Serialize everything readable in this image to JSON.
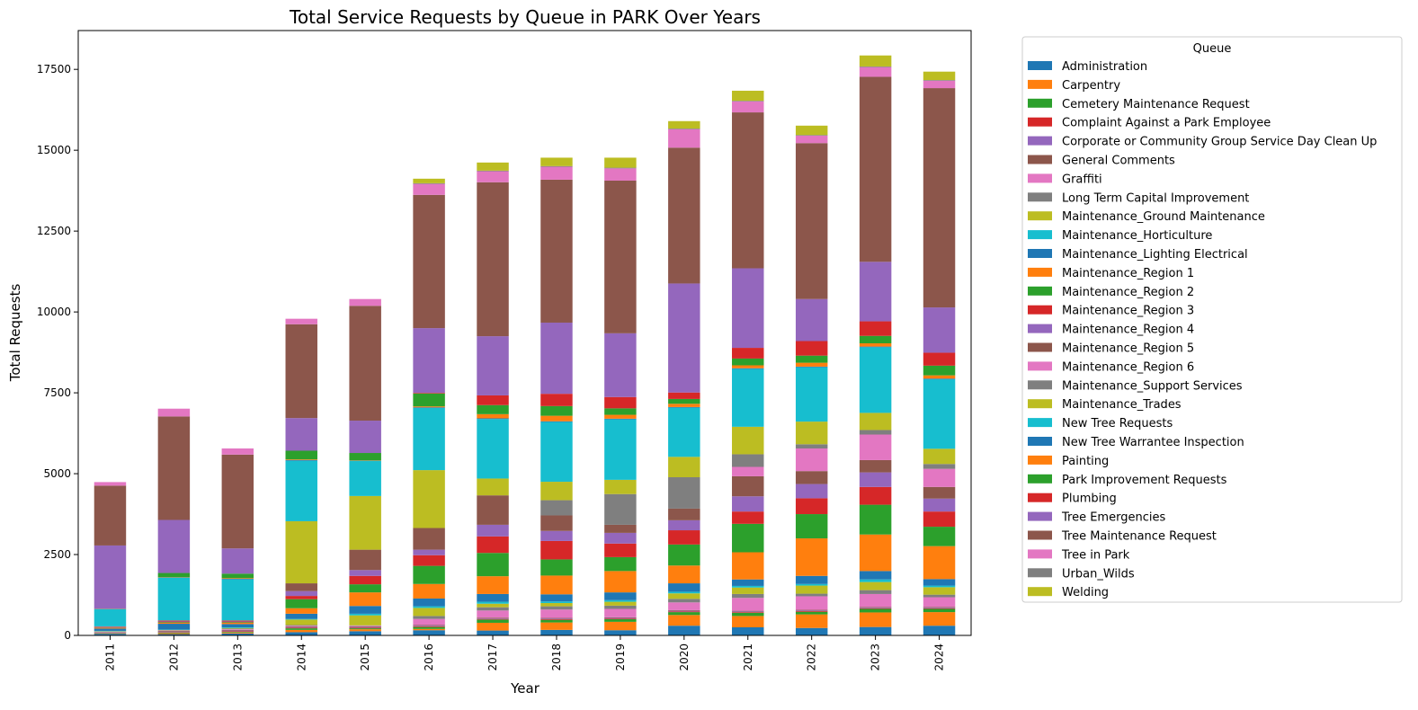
{
  "chart_data": {
    "type": "bar",
    "stacked": true,
    "title": "Total Service Requests by Queue in PARK Over Years",
    "xlabel": "Year",
    "ylabel": "Total Requests",
    "ylim": [
      0,
      18700
    ],
    "yticks": [
      "0",
      "2500",
      "5000",
      "7500",
      "10000",
      "12500",
      "15000",
      "17500"
    ],
    "ytick_values": [
      0,
      2500,
      5000,
      7500,
      10000,
      12500,
      15000,
      17500
    ],
    "grid": false,
    "legend_title": "Queue",
    "legend_position": "outside-right",
    "categories": [
      "2011",
      "2012",
      "2013",
      "2014",
      "2015",
      "2016",
      "2017",
      "2018",
      "2019",
      "2020",
      "2021",
      "2022",
      "2023",
      "2024"
    ],
    "series": [
      {
        "name": "Administration",
        "color": "#1f77b4",
        "values": [
          50,
          40,
          60,
          100,
          130,
          160,
          150,
          170,
          160,
          300,
          250,
          230,
          260,
          300
        ]
      },
      {
        "name": "Carpentry",
        "color": "#ff7f0e",
        "values": [
          10,
          30,
          30,
          70,
          60,
          40,
          240,
          230,
          260,
          330,
          350,
          420,
          450,
          420
        ]
      },
      {
        "name": "Cemetery Maintenance Request",
        "color": "#2ca02c",
        "values": [
          10,
          20,
          20,
          50,
          30,
          60,
          100,
          80,
          80,
          90,
          100,
          80,
          110,
          100
        ]
      },
      {
        "name": "Complaint Against a Park Employee",
        "color": "#d62728",
        "values": [
          10,
          10,
          20,
          20,
          20,
          20,
          20,
          20,
          20,
          20,
          20,
          20,
          20,
          20
        ]
      },
      {
        "name": "Corporate or Community Group Service Day Clean Up",
        "color": "#9467bd",
        "values": [
          10,
          20,
          20,
          20,
          20,
          20,
          20,
          20,
          20,
          20,
          20,
          20,
          20,
          20
        ]
      },
      {
        "name": "General Comments",
        "color": "#8c564b",
        "values": [
          10,
          20,
          20,
          20,
          20,
          20,
          20,
          20,
          20,
          20,
          20,
          20,
          20,
          20
        ]
      },
      {
        "name": "Graffiti",
        "color": "#e377c2",
        "values": [
          10,
          10,
          20,
          20,
          20,
          190,
          220,
          260,
          260,
          240,
          400,
          420,
          400,
          300
        ]
      },
      {
        "name": "Long Term Capital Improvement",
        "color": "#7f7f7f",
        "values": [
          10,
          10,
          20,
          20,
          10,
          90,
          100,
          100,
          100,
          110,
          120,
          80,
          120,
          80
        ]
      },
      {
        "name": "Maintenance_Ground Maintenance",
        "color": "#bcbd22",
        "values": [
          10,
          10,
          20,
          170,
          310,
          250,
          110,
          100,
          120,
          170,
          200,
          250,
          250,
          230
        ]
      },
      {
        "name": "Maintenance_Horticulture",
        "color": "#17becf",
        "values": [
          10,
          10,
          20,
          20,
          50,
          50,
          60,
          50,
          50,
          50,
          50,
          50,
          80,
          50
        ]
      },
      {
        "name": "Maintenance_Lighting Electrical",
        "color": "#1f77b4",
        "values": [
          70,
          180,
          100,
          160,
          240,
          240,
          240,
          220,
          240,
          260,
          200,
          250,
          260,
          200
        ]
      },
      {
        "name": "Maintenance_Region 1",
        "color": "#ff7f0e",
        "values": [
          20,
          30,
          40,
          170,
          420,
          450,
          550,
          580,
          660,
          550,
          840,
          1160,
          1130,
          1020
        ]
      },
      {
        "name": "Maintenance_Region 2",
        "color": "#2ca02c",
        "values": [
          10,
          20,
          20,
          280,
          250,
          560,
          720,
          500,
          430,
          650,
          880,
          750,
          920,
          600
        ]
      },
      {
        "name": "Maintenance_Region 3",
        "color": "#d62728",
        "values": [
          20,
          20,
          20,
          100,
          260,
          330,
          510,
          570,
          420,
          440,
          380,
          490,
          550,
          470
        ]
      },
      {
        "name": "Maintenance_Region 4",
        "color": "#9467bd",
        "values": [
          10,
          20,
          20,
          150,
          180,
          170,
          360,
          310,
          330,
          310,
          470,
          440,
          450,
          400
        ]
      },
      {
        "name": "Maintenance_Region 5",
        "color": "#8c564b",
        "values": [
          10,
          20,
          20,
          240,
          630,
          670,
          910,
          480,
          250,
          360,
          620,
          400,
          380,
          360
        ]
      },
      {
        "name": "Maintenance_Region 6",
        "color": "#e377c2",
        "values": [
          0,
          0,
          0,
          0,
          0,
          0,
          0,
          0,
          0,
          0,
          290,
          700,
          790,
          560
        ]
      },
      {
        "name": "Maintenance_Support Services",
        "color": "#7f7f7f",
        "values": [
          0,
          0,
          0,
          0,
          0,
          0,
          0,
          470,
          950,
          970,
          390,
          130,
          140,
          150
        ]
      },
      {
        "name": "Maintenance_Trades",
        "color": "#bcbd22",
        "values": [
          0,
          0,
          0,
          1920,
          1660,
          1790,
          520,
          570,
          440,
          630,
          850,
          700,
          530,
          470
        ]
      },
      {
        "name": "New Tree Requests",
        "color": "#17becf",
        "values": [
          530,
          1310,
          1260,
          1870,
          1080,
          1920,
          1840,
          1850,
          1870,
          1520,
          1790,
          1680,
          2030,
          2150
        ]
      },
      {
        "name": "New Tree Warrantee Inspection",
        "color": "#1f77b4",
        "values": [
          10,
          10,
          20,
          20,
          10,
          20,
          20,
          20,
          20,
          20,
          20,
          20,
          20,
          20
        ]
      },
      {
        "name": "Painting",
        "color": "#ff7f0e",
        "values": [
          10,
          10,
          20,
          20,
          10,
          30,
          130,
          170,
          120,
          100,
          90,
          120,
          100,
          100
        ]
      },
      {
        "name": "Park Improvement Requests",
        "color": "#2ca02c",
        "values": [
          0,
          130,
          140,
          270,
          230,
          400,
          280,
          300,
          200,
          150,
          210,
          220,
          230,
          300
        ]
      },
      {
        "name": "Plumbing",
        "color": "#d62728",
        "values": [
          0,
          0,
          0,
          0,
          0,
          20,
          300,
          380,
          350,
          200,
          330,
          450,
          450,
          400
        ]
      },
      {
        "name": "Tree Emergencies",
        "color": "#9467bd",
        "values": [
          1950,
          1640,
          780,
          1010,
          1000,
          2000,
          1830,
          2200,
          1970,
          3370,
          2460,
          1300,
          1840,
          1400
        ]
      },
      {
        "name": "Tree Maintenance Request",
        "color": "#8c564b",
        "values": [
          1850,
          3200,
          2900,
          2900,
          3550,
          4120,
          4760,
          4420,
          4720,
          4200,
          4820,
          4820,
          5720,
          6780
        ]
      },
      {
        "name": "Tree in Park",
        "color": "#e377c2",
        "values": [
          110,
          240,
          190,
          170,
          210,
          340,
          340,
          400,
          380,
          570,
          340,
          230,
          300,
          230
        ]
      },
      {
        "name": "Urban_Wilds",
        "color": "#7f7f7f",
        "values": [
          0,
          0,
          0,
          0,
          0,
          20,
          20,
          20,
          20,
          20,
          20,
          20,
          20,
          20
        ]
      },
      {
        "name": "Welding",
        "color": "#bcbd22",
        "values": [
          0,
          0,
          0,
          0,
          0,
          140,
          250,
          260,
          310,
          230,
          310,
          290,
          340,
          260
        ]
      }
    ]
  }
}
